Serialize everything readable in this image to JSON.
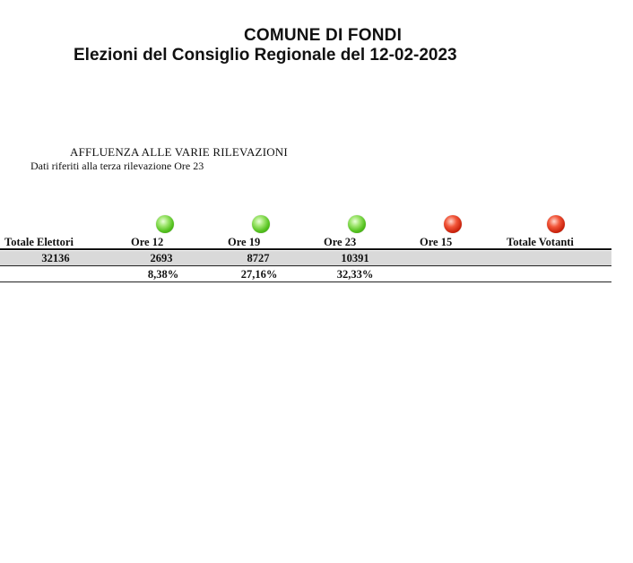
{
  "header": {
    "comune": "COMUNE DI FONDI",
    "elezione": "Elezioni del Consiglio Regionale del 12-02-2023"
  },
  "affluenza": {
    "title": "AFFLUENZA ALLE VARIE RILEVAZIONI",
    "subtitle": "Dati riferiti alla terza rilevazione Ore 23"
  },
  "colors": {
    "completed": "#55c21f",
    "pending": "#c8200a"
  },
  "table": {
    "columns": [
      {
        "label": "Totale Elettori",
        "status": null,
        "count": "32136",
        "percent": ""
      },
      {
        "label": "Ore 12",
        "status": "green",
        "count": "2693",
        "percent": "8,38%"
      },
      {
        "label": "Ore 19",
        "status": "green",
        "count": "8727",
        "percent": "27,16%"
      },
      {
        "label": "Ore 23",
        "status": "green",
        "count": "10391",
        "percent": "32,33%"
      },
      {
        "label": "Ore 15",
        "status": "red",
        "count": "",
        "percent": ""
      },
      {
        "label": "Totale Votanti",
        "status": "red",
        "count": "",
        "percent": ""
      }
    ]
  }
}
